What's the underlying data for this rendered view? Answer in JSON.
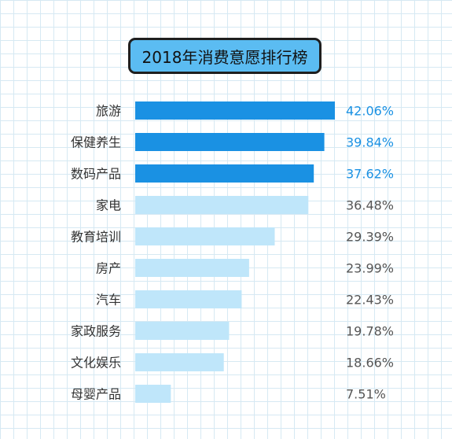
{
  "chart_data": {
    "type": "bar",
    "orientation": "horizontal",
    "title": "2018年消费意愿排行榜",
    "categories": [
      "旅游",
      "保健养生",
      "数码产品",
      "家电",
      "教育培训",
      "房产",
      "汽车",
      "家政服务",
      "文化娱乐",
      "母婴产品"
    ],
    "values": [
      42.06,
      39.84,
      37.62,
      36.48,
      29.39,
      23.99,
      22.43,
      19.78,
      18.66,
      7.51
    ],
    "value_labels": [
      "42.06%",
      "39.84%",
      "37.62%",
      "36.48%",
      "29.39%",
      "23.99%",
      "22.43%",
      "19.78%",
      "18.66%",
      "7.51%"
    ],
    "highlight_top_n": 3,
    "grid": true,
    "xlim": [
      0,
      42.06
    ]
  },
  "colors": {
    "highlight_bar": "#1a91e3",
    "normal_bar": "#bfe6fa",
    "highlight_label": "#1a91e3",
    "normal_label": "#555555",
    "category_label": "#333333",
    "title_bg": "#5bbcf2"
  }
}
